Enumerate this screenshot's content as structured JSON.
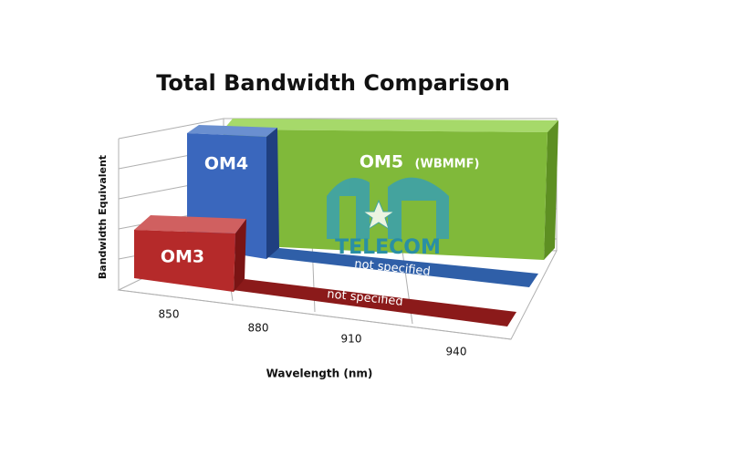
{
  "title": "Total Bandwidth Comparison",
  "y_axis_label": "Bandwidth Equivalent",
  "x_axis_label": "Wavelength (nm)",
  "x_ticks": [
    "850",
    "880",
    "910",
    "940"
  ],
  "bars": [
    {
      "label": "OM3",
      "note": "not specified"
    },
    {
      "label": "OM4",
      "note": "not specified"
    },
    {
      "label": "OM5",
      "sublabel": "(WBMMF)"
    }
  ],
  "watermark": "TELECOM"
}
